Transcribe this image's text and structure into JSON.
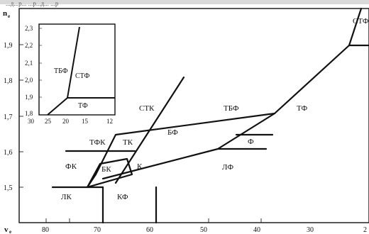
{
  "header_fragment": "...д...р... ...р...д... ...р",
  "main_plot": {
    "y_axis_title": "n",
    "y_axis_subscript": "e",
    "x_axis_title": "v",
    "x_axis_subscript": "e",
    "y_ticks": [
      "1,9",
      "1,8",
      "1,7",
      "1,6",
      "1,5"
    ],
    "x_ticks": [
      "80",
      "70",
      "60",
      "50",
      "40",
      "30",
      "2"
    ],
    "regions": {
      "stk": "СТК",
      "tbf": "ТБФ",
      "tf": "ТФ",
      "stf": "СТФ",
      "tfk": "ТФК",
      "tk": "ТК",
      "bf": "БФ",
      "f": "Ф",
      "fk": "ФК",
      "bk": "БК",
      "k": "К",
      "lf": "ЛФ",
      "lk": "ЛК",
      "kf": "КФ"
    }
  },
  "inset_plot": {
    "y_ticks": [
      "2,3",
      "2,2",
      "2,1",
      "2,0",
      "1,9",
      "1,8"
    ],
    "x_ticks": [
      "30",
      "25",
      "20",
      "15",
      "12"
    ],
    "regions": {
      "tbf": "ТБФ",
      "stf": "СТФ",
      "tf": "ТФ"
    }
  }
}
